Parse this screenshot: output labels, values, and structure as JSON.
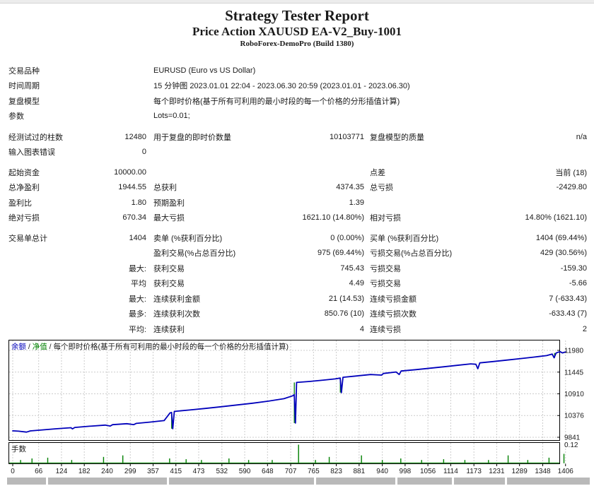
{
  "header": {
    "title": "Strategy Tester Report",
    "subtitle": "Price Action XAUUSD EA-V2_Buy-1001",
    "server": "RoboForex-DemoPro (Build 1380)"
  },
  "table": {
    "info_rows": [
      {
        "label": "交易品种",
        "value": "EURUSD (Euro vs US Dollar)"
      },
      {
        "label": "时间周期",
        "value": "15 分钟图 2023.01.01 22:04 - 2023.06.30 20:59 (2023.01.01 - 2023.06.30)"
      },
      {
        "label": "复盘模型",
        "value": "每个即时价格(基于所有可利用的最小时段的每一个价格的分形插值计算)"
      },
      {
        "label": "参数",
        "value": "Lots=0.01;"
      }
    ],
    "rows_b": [
      {
        "c1": "经测试过的柱数",
        "c2": "12480",
        "c3": "用于复盘的即时价数量",
        "c4": "10103771",
        "c5": "复盘模型的质量",
        "c6": "n/a"
      },
      {
        "c1": "输入图表错误",
        "c2": "0",
        "c3": "",
        "c4": "",
        "c5": "",
        "c6": ""
      }
    ],
    "rows_c": [
      {
        "c1": "起始资金",
        "c2": "10000.00",
        "c3": "",
        "c4": "",
        "c5": "点差",
        "c6": "当前 (18)"
      },
      {
        "c1": "总净盈利",
        "c2": "1944.55",
        "c3": "总获利",
        "c4": "4374.35",
        "c5": "总亏损",
        "c6": "-2429.80"
      },
      {
        "c1": "盈利比",
        "c2": "1.80",
        "c3": "预期盈利",
        "c4": "1.39",
        "c5": "",
        "c6": ""
      },
      {
        "c1": "绝对亏损",
        "c2": "670.34",
        "c3": "最大亏损",
        "c4": "1621.10 (14.80%)",
        "c5": "相对亏损",
        "c6": "14.80% (1621.10)"
      }
    ],
    "rows_d": [
      {
        "c1": "交易单总计",
        "c2": "1404",
        "c3": "卖单 (%获利百分比)",
        "c4": "0 (0.00%)",
        "c5": "买单 (%获利百分比)",
        "c6": "1404 (69.44%)"
      },
      {
        "c1": "",
        "c2": "",
        "c3": "盈利交易(%占总百分比)",
        "c4": "975 (69.44%)",
        "c5": "亏损交易(%占总百分比)",
        "c6": "429 (30.56%)"
      },
      {
        "c1": "",
        "c2": "最大:",
        "c3": "获利交易",
        "c4": "745.43",
        "c5": "亏损交易",
        "c6": "-159.30"
      },
      {
        "c1": "",
        "c2": "平均",
        "c3": "获利交易",
        "c4": "4.49",
        "c5": "亏损交易",
        "c6": "-5.66"
      },
      {
        "c1": "",
        "c2": "最大:",
        "c3": "连续获利金额",
        "c4": "21 (14.53)",
        "c5": "连续亏损金额",
        "c6": "7 (-633.43)"
      },
      {
        "c1": "",
        "c2": "最多:",
        "c3": "连续获利次数",
        "c4": "850.76 (10)",
        "c5": "连续亏损次数",
        "c6": "-633.43 (7)"
      },
      {
        "c1": "",
        "c2": "平均:",
        "c3": "连续获利",
        "c4": "4",
        "c5": "连续亏损",
        "c6": "2"
      }
    ]
  },
  "chart_data": {
    "type": "line",
    "legend": {
      "balance_label": "余额",
      "equity_label": "净值",
      "sep1": " / ",
      "sep2": " / ",
      "model_label": "每个即时价格(基于所有可利用的最小时段的每一个价格的分形插值计算)"
    },
    "x_ticks": [
      0,
      66,
      124,
      182,
      240,
      299,
      357,
      415,
      473,
      532,
      590,
      648,
      707,
      765,
      823,
      881,
      940,
      998,
      1056,
      1114,
      1173,
      1231,
      1289,
      1348,
      1406
    ],
    "y_ticks": [
      9841,
      10376,
      10910,
      11445,
      11980
    ],
    "x_range": [
      0,
      1406
    ],
    "y_range": [
      9841,
      11980
    ],
    "xlabel": "",
    "ylabel": "",
    "grid": true,
    "legend_position": "top-left",
    "balance_series": [
      [
        0,
        10000
      ],
      [
        15,
        9990
      ],
      [
        35,
        9968
      ],
      [
        45,
        9998
      ],
      [
        75,
        10022
      ],
      [
        110,
        10050
      ],
      [
        148,
        10075
      ],
      [
        152,
        10048
      ],
      [
        158,
        10082
      ],
      [
        195,
        10112
      ],
      [
        235,
        10140
      ],
      [
        248,
        10118
      ],
      [
        254,
        10150
      ],
      [
        290,
        10175
      ],
      [
        308,
        10152
      ],
      [
        314,
        10182
      ],
      [
        350,
        10215
      ],
      [
        385,
        10252
      ],
      [
        400,
        10440
      ],
      [
        404,
        10452
      ],
      [
        407,
        10052
      ],
      [
        411,
        10478
      ],
      [
        450,
        10512
      ],
      [
        490,
        10550
      ],
      [
        530,
        10592
      ],
      [
        570,
        10635
      ],
      [
        610,
        10680
      ],
      [
        650,
        10730
      ],
      [
        690,
        10790
      ],
      [
        712,
        10862
      ],
      [
        716,
        10888
      ],
      [
        719,
        10190
      ],
      [
        722,
        11190
      ],
      [
        755,
        11215
      ],
      [
        790,
        11248
      ],
      [
        820,
        11278
      ],
      [
        833,
        11298
      ],
      [
        836,
        10940
      ],
      [
        840,
        11318
      ],
      [
        875,
        11350
      ],
      [
        910,
        11385
      ],
      [
        938,
        11372
      ],
      [
        943,
        11412
      ],
      [
        975,
        11448
      ],
      [
        983,
        11385
      ],
      [
        988,
        11472
      ],
      [
        1025,
        11505
      ],
      [
        1060,
        11540
      ],
      [
        1095,
        11575
      ],
      [
        1130,
        11612
      ],
      [
        1165,
        11648
      ],
      [
        1178,
        11638
      ],
      [
        1183,
        11528
      ],
      [
        1188,
        11672
      ],
      [
        1222,
        11706
      ],
      [
        1258,
        11742
      ],
      [
        1292,
        11778
      ],
      [
        1326,
        11815
      ],
      [
        1358,
        11852
      ],
      [
        1372,
        11890
      ],
      [
        1377,
        11798
      ],
      [
        1382,
        11915
      ],
      [
        1392,
        11948
      ],
      [
        1398,
        11918
      ],
      [
        1406,
        11940
      ]
    ],
    "equity_marks": [
      [
        406,
        10052,
        10460
      ],
      [
        718,
        10190,
        11190
      ],
      [
        835,
        10940,
        11310
      ],
      [
        1380,
        11798,
        11915
      ]
    ],
    "lots": {
      "label": "手数",
      "max_label": "0.12",
      "max": 0.12,
      "series": [
        [
          20,
          0.02
        ],
        [
          49,
          0.03
        ],
        [
          89,
          0.035
        ],
        [
          150,
          0.02
        ],
        [
          231,
          0.04
        ],
        [
          280,
          0.05
        ],
        [
          399,
          0.03
        ],
        [
          441,
          0.025
        ],
        [
          480,
          0.02
        ],
        [
          550,
          0.03
        ],
        [
          600,
          0.02
        ],
        [
          660,
          0.02
        ],
        [
          727,
          0.12
        ],
        [
          770,
          0.02
        ],
        [
          805,
          0.04
        ],
        [
          887,
          0.05
        ],
        [
          940,
          0.02
        ],
        [
          987,
          0.03
        ],
        [
          1040,
          0.02
        ],
        [
          1096,
          0.025
        ],
        [
          1150,
          0.02
        ],
        [
          1210,
          0.02
        ],
        [
          1260,
          0.05
        ],
        [
          1310,
          0.02
        ],
        [
          1364,
          0.035
        ],
        [
          1402,
          0.06
        ]
      ]
    },
    "colors": {
      "balance": "#0000bb",
      "equity": "#008000",
      "grid": "#cccccc",
      "border": "#000000",
      "text": "#1a1a1a"
    }
  },
  "bottom_strip": {
    "color": "#b9b9b9",
    "segments": [
      [
        10,
        55
      ],
      [
        68,
        168
      ],
      [
        239,
        205
      ],
      [
        447,
        112
      ],
      [
        562,
        77
      ],
      [
        642,
        72
      ],
      [
        717,
        117
      ]
    ]
  }
}
